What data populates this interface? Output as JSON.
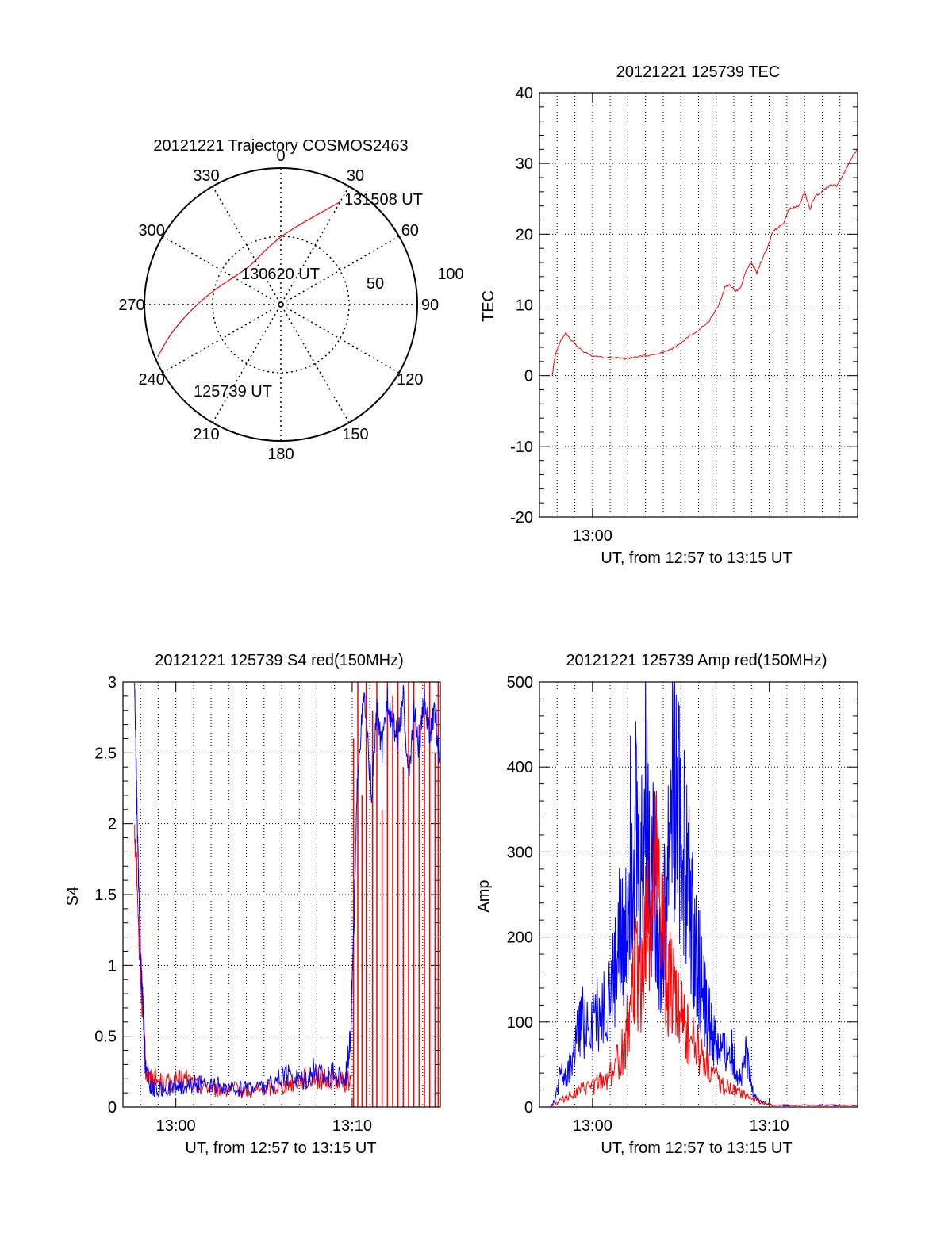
{
  "colors": {
    "red": "#ff0000",
    "blue": "#0000ff",
    "axis": "#000000",
    "grid": "#000000"
  },
  "chart_data": [
    {
      "type": "polar",
      "title": "20121221 Trajectory COSMOS2463",
      "angle_labels": [
        "0",
        "30",
        "60",
        "90",
        "120",
        "150",
        "180",
        "210",
        "240",
        "270",
        "300",
        "330"
      ],
      "radius_labels": [
        "50",
        "100"
      ],
      "trajectory": {
        "color": "red",
        "points": [
          {
            "az": 247,
            "r": 98
          },
          {
            "az": 255,
            "r": 84
          },
          {
            "az": 265,
            "r": 68
          },
          {
            "az": 280,
            "r": 52
          },
          {
            "az": 300,
            "r": 40
          },
          {
            "az": 320,
            "r": 36
          },
          {
            "az": 340,
            "r": 40
          },
          {
            "az": 0,
            "r": 50
          },
          {
            "az": 15,
            "r": 62
          },
          {
            "az": 25,
            "r": 76
          },
          {
            "az": 30,
            "r": 87
          }
        ]
      },
      "annotations": [
        "131508 UT",
        "130620 UT",
        "125739 UT"
      ]
    },
    {
      "type": "line",
      "title": "20121221 125739 TEC",
      "ylabel": "TEC",
      "xlabel": "UT, from 12:57 to 13:15 UT",
      "xlim": [
        12.95,
        13.25
      ],
      "ylim": [
        -20,
        40
      ],
      "yticks": [
        -20,
        -10,
        0,
        10,
        20,
        30,
        40
      ],
      "xticks": [
        {
          "v": 13.0,
          "label": "13:00"
        }
      ],
      "grid": true,
      "series": [
        {
          "color": "red",
          "x": [
            12.962,
            12.965,
            12.97,
            12.975,
            12.98,
            12.99,
            13.0,
            13.01,
            13.02,
            13.03,
            13.04,
            13.05,
            13.06,
            13.07,
            13.08,
            13.09,
            13.1,
            13.11,
            13.12,
            13.125,
            13.13,
            13.135,
            13.14,
            13.145,
            13.15,
            13.155,
            13.16,
            13.165,
            13.17,
            13.175,
            13.18,
            13.185,
            13.19,
            13.195,
            13.2,
            13.205,
            13.21,
            13.215,
            13.22,
            13.225,
            13.23,
            13.235,
            13.24,
            13.245,
            13.25
          ],
          "y": [
            0,
            3,
            5,
            6,
            5,
            3.5,
            2.8,
            2.6,
            2.5,
            2.4,
            2.6,
            2.8,
            3.1,
            3.5,
            4.2,
            5.5,
            6.5,
            7.7,
            10.3,
            12.6,
            12.8,
            11.9,
            12.5,
            15,
            16,
            14.5,
            16.5,
            18,
            20.4,
            21,
            21.5,
            23.5,
            23.8,
            24.1,
            26,
            23.5,
            25.5,
            25.8,
            26.5,
            27,
            26.8,
            28,
            29.5,
            31,
            32
          ]
        }
      ]
    },
    {
      "type": "line",
      "title": "20121221 125739 S4 red(150MHz)",
      "ylabel": "S4",
      "xlabel": "UT, from 12:57 to 13:15 UT",
      "xlim": [
        12.95,
        13.25
      ],
      "ylim": [
        0,
        3
      ],
      "yticks": [
        0,
        0.5,
        1,
        1.5,
        2,
        2.5,
        3
      ],
      "ytick_labels": [
        "0",
        "0.5",
        "1",
        "1.5",
        "2",
        "2.5",
        "3"
      ],
      "xticks": [
        {
          "v": 13.0,
          "label": "13:00"
        },
        {
          "v": 13.1667,
          "label": "13:10"
        }
      ],
      "grid": true,
      "series": [
        {
          "color": "red",
          "x": [
            12.961,
            12.963,
            12.965,
            12.967,
            12.969,
            12.971,
            12.975,
            12.98,
            12.99,
            13.0,
            13.01,
            13.02,
            13.03,
            13.04,
            13.05,
            13.06,
            13.07,
            13.08,
            13.09,
            13.1,
            13.11,
            13.12,
            13.13,
            13.14,
            13.15,
            13.16,
            13.165
          ],
          "y": [
            1.9,
            1.7,
            1.2,
            0.9,
            0.6,
            0.3,
            0.2,
            0.19,
            0.17,
            0.18,
            0.2,
            0.15,
            0.14,
            0.12,
            0.13,
            0.12,
            0.11,
            0.12,
            0.13,
            0.15,
            0.17,
            0.2,
            0.22,
            0.2,
            0.19,
            0.17,
            0.2
          ],
          "spikes": [
            {
              "x": 13.168,
              "y": 2.6
            },
            {
              "x": 13.172,
              "y": 3
            },
            {
              "x": 13.176,
              "y": 2.2
            },
            {
              "x": 13.18,
              "y": 3
            },
            {
              "x": 13.186,
              "y": 2.8
            },
            {
              "x": 13.19,
              "y": 3
            },
            {
              "x": 13.195,
              "y": 2.1
            },
            {
              "x": 13.2,
              "y": 3
            },
            {
              "x": 13.205,
              "y": 2.9
            },
            {
              "x": 13.21,
              "y": 3
            },
            {
              "x": 13.215,
              "y": 2.4
            },
            {
              "x": 13.22,
              "y": 3
            },
            {
              "x": 13.225,
              "y": 3
            },
            {
              "x": 13.23,
              "y": 2.7
            },
            {
              "x": 13.235,
              "y": 3
            },
            {
              "x": 13.24,
              "y": 3
            },
            {
              "x": 13.245,
              "y": 2.5
            },
            {
              "x": 13.248,
              "y": 3
            }
          ]
        },
        {
          "color": "blue",
          "x": [
            12.961,
            12.963,
            12.965,
            12.967,
            12.969,
            12.971,
            12.975,
            12.98,
            12.99,
            13.0,
            13.01,
            13.02,
            13.03,
            13.04,
            13.05,
            13.06,
            13.07,
            13.08,
            13.09,
            13.1,
            13.11,
            13.12,
            13.13,
            13.14,
            13.15,
            13.16,
            13.165,
            13.168,
            13.172,
            13.178,
            13.185,
            13.19,
            13.195,
            13.2,
            13.205,
            13.21,
            13.215,
            13.22,
            13.225,
            13.23,
            13.235,
            13.24,
            13.245,
            13.25
          ],
          "y": [
            3,
            2.2,
            1.5,
            1.0,
            0.7,
            0.35,
            0.15,
            0.12,
            0.13,
            0.14,
            0.15,
            0.17,
            0.14,
            0.15,
            0.12,
            0.13,
            0.15,
            0.14,
            0.16,
            0.2,
            0.22,
            0.2,
            0.25,
            0.22,
            0.23,
            0.2,
            0.5,
            1.2,
            2.4,
            2.9,
            2.2,
            2.8,
            2.5,
            2.9,
            2.7,
            2.6,
            2.9,
            2.3,
            2.8,
            2.5,
            2.9,
            2.6,
            2.8,
            2.4
          ]
        }
      ]
    },
    {
      "type": "line",
      "title": "20121221 125739 Amp red(150MHz)",
      "ylabel": "Amp",
      "xlabel": "UT, from 12:57 to 13:15 UT",
      "xlim": [
        12.95,
        13.25
      ],
      "ylim": [
        0,
        500
      ],
      "yticks": [
        0,
        100,
        200,
        300,
        400,
        500
      ],
      "xticks": [
        {
          "v": 13.0,
          "label": "13:00"
        },
        {
          "v": 13.1667,
          "label": "13:10"
        }
      ],
      "grid": true,
      "series": [
        {
          "color": "blue",
          "x": [
            12.96,
            12.965,
            12.97,
            12.975,
            12.98,
            12.985,
            12.99,
            13.0,
            13.01,
            13.02,
            13.025,
            13.03,
            13.035,
            13.04,
            13.045,
            13.05,
            13.055,
            13.06,
            13.065,
            13.07,
            13.075,
            13.08,
            13.085,
            13.09,
            13.095,
            13.1,
            13.105,
            13.11,
            13.115,
            13.12,
            13.125,
            13.13,
            13.135,
            13.14,
            13.145,
            13.15,
            13.155,
            13.16,
            13.17,
            13.2,
            13.25
          ],
          "y": [
            0,
            10,
            40,
            30,
            50,
            80,
            100,
            110,
            120,
            150,
            200,
            180,
            300,
            360,
            260,
            380,
            280,
            250,
            160,
            260,
            400,
            340,
            320,
            260,
            200,
            170,
            130,
            100,
            80,
            70,
            60,
            70,
            50,
            30,
            60,
            25,
            10,
            5,
            2,
            2,
            2
          ]
        },
        {
          "color": "red",
          "x": [
            12.96,
            12.97,
            12.98,
            12.99,
            13.0,
            13.01,
            13.02,
            13.03,
            13.035,
            13.04,
            13.045,
            13.05,
            13.055,
            13.06,
            13.065,
            13.07,
            13.075,
            13.08,
            13.085,
            13.09,
            13.1,
            13.11,
            13.12,
            13.13,
            13.14,
            13.15,
            13.16,
            13.17,
            13.2,
            13.25
          ],
          "y": [
            0,
            8,
            15,
            20,
            25,
            30,
            45,
            70,
            120,
            160,
            140,
            200,
            230,
            260,
            220,
            150,
            140,
            120,
            100,
            90,
            70,
            45,
            30,
            20,
            15,
            10,
            5,
            2,
            2,
            2
          ]
        }
      ]
    }
  ]
}
